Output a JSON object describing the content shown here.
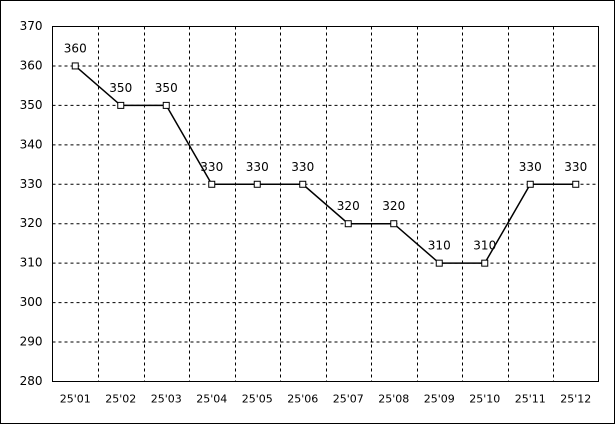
{
  "chart_data": {
    "type": "line",
    "categories": [
      "25'01",
      "25'02",
      "25'03",
      "25'04",
      "25'05",
      "25'06",
      "25'07",
      "25'08",
      "25'09",
      "25'10",
      "25'11",
      "25'12"
    ],
    "values": [
      360,
      350,
      350,
      330,
      330,
      330,
      320,
      320,
      310,
      310,
      330,
      330
    ],
    "color": "#000000",
    "ylim": [
      280,
      370
    ],
    "yticks": [
      280,
      290,
      300,
      310,
      320,
      330,
      340,
      350,
      360,
      370
    ],
    "grid": true
  }
}
